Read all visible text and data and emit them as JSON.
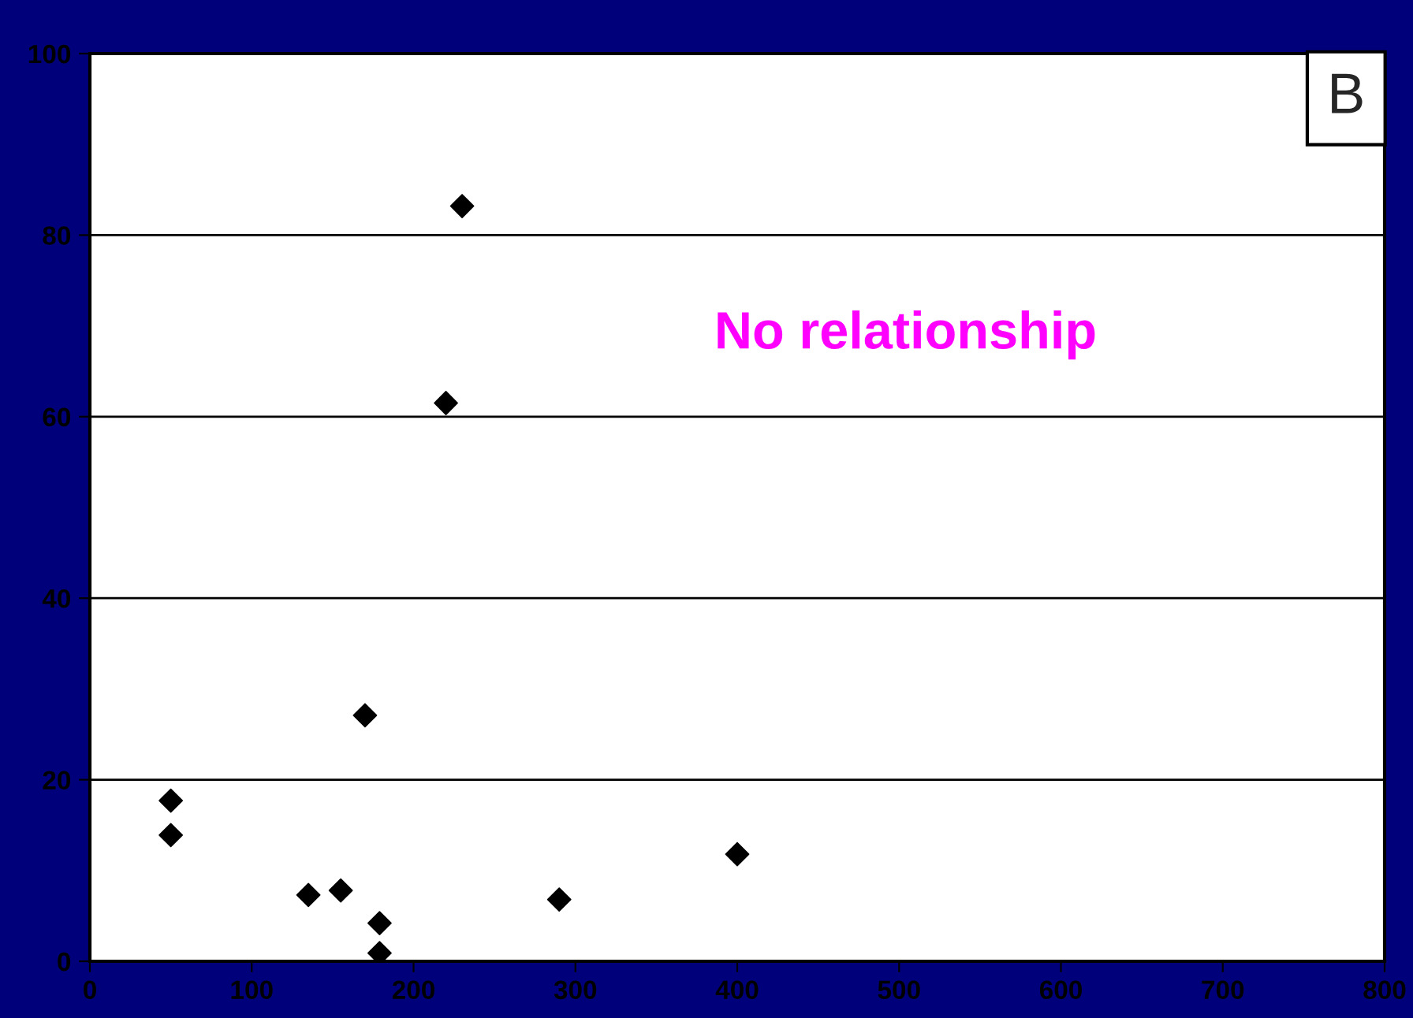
{
  "chart_data": {
    "type": "scatter",
    "x": [
      50,
      50,
      135,
      155,
      170,
      179,
      179,
      220,
      230,
      290,
      400
    ],
    "values": [
      17.7,
      13.9,
      7.3,
      7.8,
      27.1,
      4.2,
      0.9,
      61.5,
      83.2,
      6.8,
      11.8
    ],
    "color": "#000000",
    "marker": "diamond",
    "xlim": [
      0,
      800
    ],
    "xticks": [
      0,
      100,
      200,
      300,
      400,
      500,
      600,
      700,
      800
    ],
    "ylim": [
      0,
      100
    ],
    "yticks": [
      0,
      20,
      40,
      60,
      80,
      100
    ],
    "grid": "y",
    "annotations": [
      "B",
      "No relationship"
    ]
  }
}
